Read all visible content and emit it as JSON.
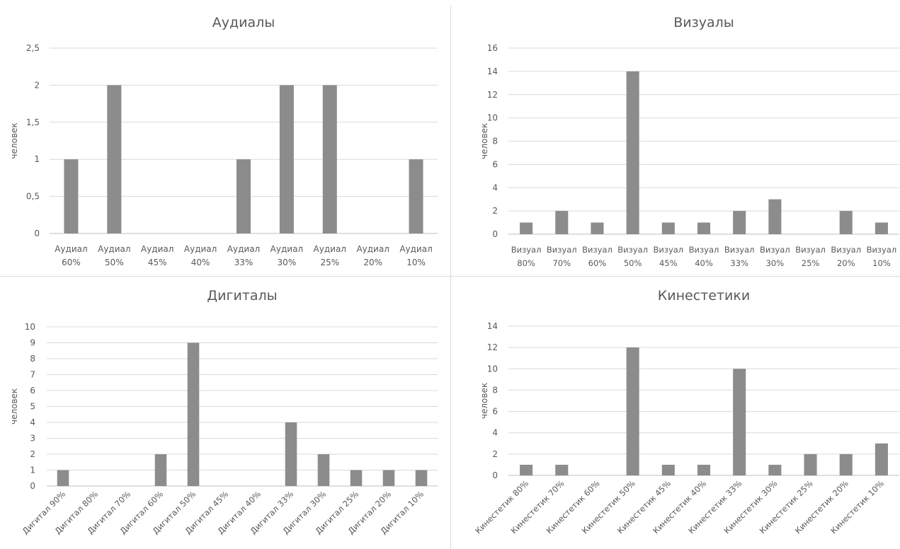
{
  "chart_data": [
    {
      "type": "bar",
      "title": "Аудиалы",
      "ylabel": "человек",
      "ylim": [
        0,
        2.5
      ],
      "y_ticks": [
        "0",
        "0,5",
        "1",
        "1,5",
        "2",
        "2,5"
      ],
      "categories": [
        "Аудиал 60%",
        "Аудиал 50%",
        "Аудиал 45%",
        "Аудиал 40%",
        "Аудиал 33%",
        "Аудиал 30%",
        "Аудиал 25%",
        "Аудиал 20%",
        "Аудиал 10%"
      ],
      "values": [
        1,
        2,
        0,
        0,
        1,
        2,
        2,
        0,
        1
      ],
      "label_style": "wrapped"
    },
    {
      "type": "bar",
      "title": "Визуалы",
      "ylabel": "человек",
      "ylim": [
        0,
        16
      ],
      "y_ticks": [
        "0",
        "2",
        "4",
        "6",
        "8",
        "10",
        "12",
        "14",
        "16"
      ],
      "categories": [
        "Визуал 80%",
        "Визуал 70%",
        "Визуал 60%",
        "Визуал 50%",
        "Визуал 45%",
        "Визуал 40%",
        "Визуал 33%",
        "Визуал 30%",
        "Визуал 25%",
        "Визуал 20%",
        "Визуал 10%"
      ],
      "values": [
        1,
        2,
        1,
        14,
        1,
        1,
        2,
        3,
        0,
        2,
        1
      ],
      "label_style": "wrapped"
    },
    {
      "type": "bar",
      "title": "Дигиталы",
      "ylabel": "человек",
      "ylim": [
        0,
        10
      ],
      "y_ticks": [
        "0",
        "1",
        "2",
        "3",
        "4",
        "5",
        "6",
        "7",
        "8",
        "9",
        "10"
      ],
      "categories": [
        "Дигитал 90%",
        "Дигитал 80%",
        "Дигитал 70%",
        "Дигитал 60%",
        "Дигитал 50%",
        "Дигитал 45%",
        "Дигитал 40%",
        "Дигитал 33%",
        "Дигитал 30%",
        "Дигитал 25%",
        "Дигитал 20%",
        "Дигитал 10%"
      ],
      "values": [
        1,
        0,
        0,
        2,
        9,
        0,
        0,
        4,
        2,
        1,
        1,
        1
      ],
      "label_style": "rotated"
    },
    {
      "type": "bar",
      "title": "Кинестетики",
      "ylabel": "человек",
      "ylim": [
        0,
        14
      ],
      "y_ticks": [
        "0",
        "2",
        "4",
        "6",
        "8",
        "10",
        "12",
        "14"
      ],
      "categories": [
        "Кинестетик 80%",
        "Кинестетик 70%",
        "Кинестетик 60%",
        "Кинестетик 50%",
        "Кинестетик 45%",
        "Кинестетик 40%",
        "Кинестетик 33%",
        "Кинестетик 30%",
        "Кинестетик 25%",
        "Кинестетик 20%",
        "Кинестетик 10%"
      ],
      "values": [
        1,
        1,
        0,
        12,
        1,
        1,
        10,
        1,
        2,
        2,
        3
      ],
      "label_style": "rotated"
    }
  ],
  "style": {
    "bar_color": "#8c8c8c",
    "grid_color": "#d9d9d9",
    "text_color": "#595959"
  }
}
